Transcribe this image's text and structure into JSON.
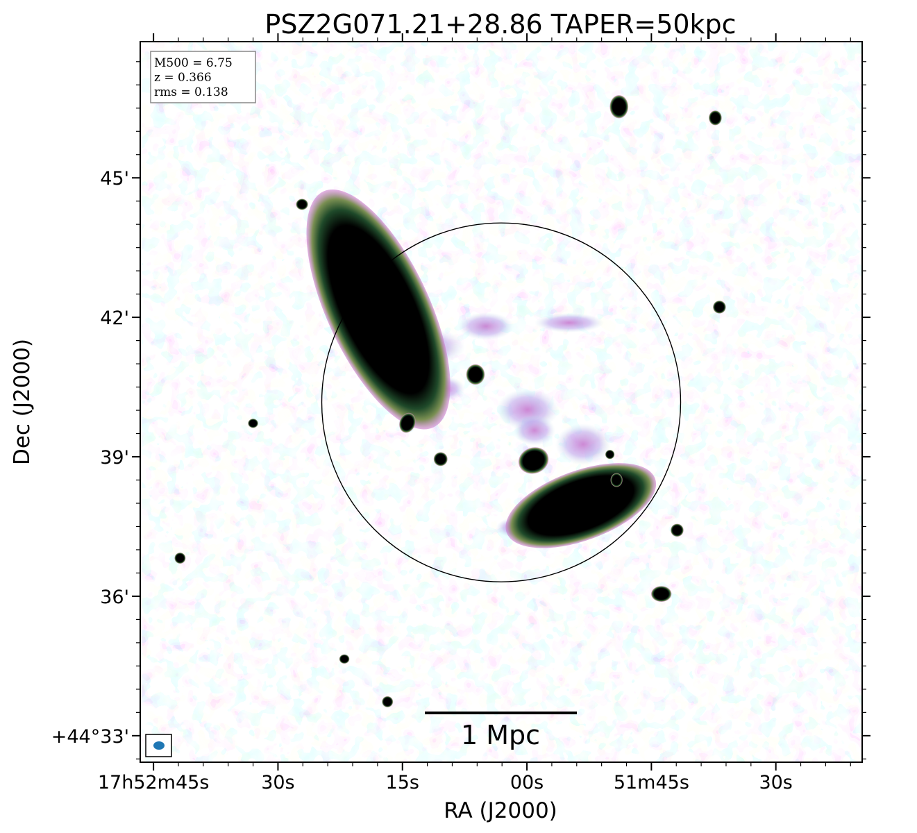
{
  "chart_data": {
    "type": "heatmap",
    "title": "PSZ2G071.21+28.86 TAPER=50kpc",
    "xlabel": "RA (J2000)",
    "ylabel": "Dec (J2000)",
    "x_ticks": [
      {
        "label": "17h52m45s",
        "ra_sec": 765
      },
      {
        "label": "30s",
        "ra_sec": 750
      },
      {
        "label": "15s",
        "ra_sec": 735
      },
      {
        "label": "00s",
        "ra_sec": 720
      },
      {
        "label": "51m45s",
        "ra_sec": 705
      },
      {
        "label": "30s",
        "ra_sec": 690
      }
    ],
    "y_ticks": [
      {
        "label": "45'",
        "dec_arcmin": 45
      },
      {
        "label": "42'",
        "dec_arcmin": 42
      },
      {
        "label": "39'",
        "dec_arcmin": 39
      },
      {
        "label": "36'",
        "dec_arcmin": 36
      },
      {
        "label": "+44°33'",
        "dec_arcmin": 33
      }
    ],
    "xlim_ra_sec": [
      766.6,
      679.6
    ],
    "ylim_dec_arcmin": [
      32.43,
      47.93
    ],
    "info_box": [
      "M500 = 6.75",
      "z = 0.366",
      "rms = 0.138"
    ],
    "scale_bar_label": "1 Mpc",
    "circle": {
      "ra_sec": 723.1,
      "dec_arcmin": 40.17,
      "radius_arcmin": 3.86
    },
    "colors": {
      "noise_low": "#bfe3ea",
      "noise_mid": "#b4b4ee",
      "noise_high": "#cf7fd6",
      "source_edge": "#2e6b3c",
      "source_core": "#000000",
      "beam": "#1f77b4"
    },
    "sources": [
      {
        "name": "relic-nw",
        "ra_sec": 737.9,
        "dec_arcmin": 42.17,
        "size_arcmin": [
          1.1,
          2.8
        ],
        "angle_deg": -25
      },
      {
        "name": "relic-se",
        "ra_sec": 713.5,
        "dec_arcmin": 37.95,
        "size_arcmin": [
          0.75,
          1.7
        ],
        "angle_deg": 70
      },
      {
        "name": "point-1",
        "ra_sec": 708.9,
        "dec_arcmin": 46.53,
        "size_arcmin": [
          0.2,
          0.25
        ],
        "angle_deg": 0
      },
      {
        "name": "point-2",
        "ra_sec": 697.3,
        "dec_arcmin": 46.29,
        "size_arcmin": [
          0.14,
          0.16
        ],
        "angle_deg": 0
      },
      {
        "name": "point-3",
        "ra_sec": 747.1,
        "dec_arcmin": 44.43,
        "size_arcmin": [
          0.13,
          0.12
        ],
        "angle_deg": 0
      },
      {
        "name": "point-4",
        "ra_sec": 696.8,
        "dec_arcmin": 42.22,
        "size_arcmin": [
          0.14,
          0.14
        ],
        "angle_deg": 0
      },
      {
        "name": "point-5",
        "ra_sec": 726.2,
        "dec_arcmin": 40.77,
        "size_arcmin": [
          0.2,
          0.22
        ],
        "angle_deg": 0
      },
      {
        "name": "point-6",
        "ra_sec": 734.4,
        "dec_arcmin": 39.73,
        "size_arcmin": [
          0.17,
          0.22
        ],
        "angle_deg": 20
      },
      {
        "name": "point-7",
        "ra_sec": 730.4,
        "dec_arcmin": 38.95,
        "size_arcmin": [
          0.15,
          0.15
        ],
        "angle_deg": 0
      },
      {
        "name": "point-8",
        "ra_sec": 719.2,
        "dec_arcmin": 38.92,
        "size_arcmin": [
          0.33,
          0.28
        ],
        "angle_deg": -20
      },
      {
        "name": "point-9",
        "ra_sec": 709.2,
        "dec_arcmin": 38.5,
        "size_arcmin": [
          0.13,
          0.15
        ],
        "angle_deg": 0
      },
      {
        "name": "point-10",
        "ra_sec": 710.0,
        "dec_arcmin": 39.05,
        "size_arcmin": [
          0.1,
          0.1
        ],
        "angle_deg": 0
      },
      {
        "name": "point-11",
        "ra_sec": 701.9,
        "dec_arcmin": 37.42,
        "size_arcmin": [
          0.14,
          0.14
        ],
        "angle_deg": 0
      },
      {
        "name": "point-12",
        "ra_sec": 703.8,
        "dec_arcmin": 36.05,
        "size_arcmin": [
          0.22,
          0.17
        ],
        "angle_deg": 0
      },
      {
        "name": "point-13",
        "ra_sec": 761.8,
        "dec_arcmin": 36.82,
        "size_arcmin": [
          0.12,
          0.12
        ],
        "angle_deg": 0
      },
      {
        "name": "point-14",
        "ra_sec": 736.8,
        "dec_arcmin": 33.73,
        "size_arcmin": [
          0.12,
          0.12
        ],
        "angle_deg": 0
      },
      {
        "name": "point-15",
        "ra_sec": 753.0,
        "dec_arcmin": 39.72,
        "size_arcmin": [
          0.11,
          0.1
        ],
        "angle_deg": 0
      },
      {
        "name": "point-16",
        "ra_sec": 742.0,
        "dec_arcmin": 34.65,
        "size_arcmin": [
          0.11,
          0.1
        ],
        "angle_deg": 0
      }
    ]
  }
}
